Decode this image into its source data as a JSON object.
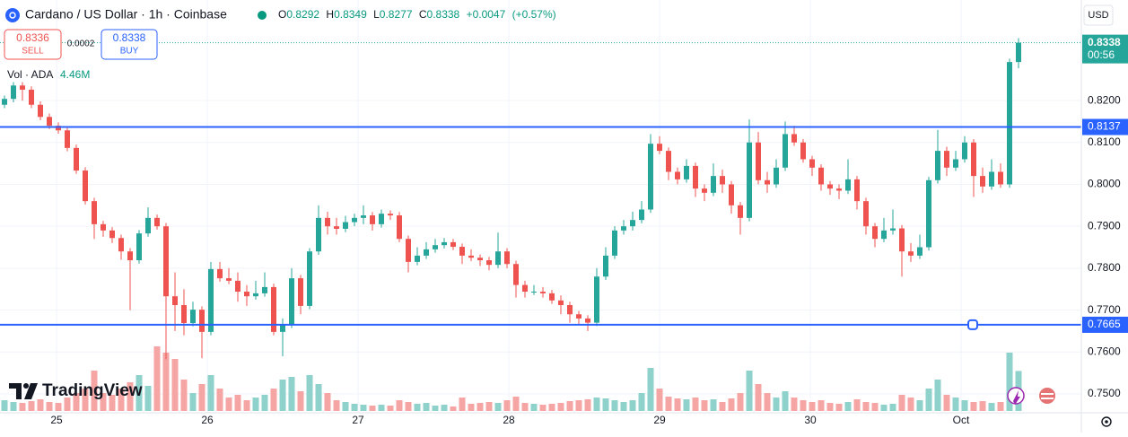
{
  "header": {
    "symbol": "Cardano / US Dollar · 1h · Coinbase",
    "o_label": "O",
    "h_label": "H",
    "l_label": "L",
    "c_label": "C",
    "change": "+0.0047",
    "change_pct": "(+0.57%)"
  },
  "trade": {
    "sell": 0.8336,
    "sell_label": "SELL",
    "spread": 0.0002,
    "buy": 0.8338,
    "buy_label": "BUY"
  },
  "volume_legend": {
    "label": "Vol · ADA",
    "value_label": "4.46M"
  },
  "currency": "USD",
  "countdown": "00:56",
  "watermark": "TradingView",
  "chart_data": {
    "type": "candlestick",
    "up_color": "#26a69a",
    "down_color": "#ef5350",
    "volume_up_color": "#8fd2cc",
    "volume_down_color": "#f5a5a3",
    "line_color": "#2962ff",
    "grid": true,
    "xlim": [
      -0.5,
      120
    ],
    "xticks": [
      {
        "value": 5.8,
        "label": "25"
      },
      {
        "value": 22.6,
        "label": "26"
      },
      {
        "value": 39.4,
        "label": "27"
      },
      {
        "value": 56.2,
        "label": "28"
      },
      {
        "value": 73,
        "label": "29"
      },
      {
        "value": 89.8,
        "label": "30"
      },
      {
        "value": 106.6,
        "label": "Oct"
      }
    ],
    "ylim": [
      0.7455,
      0.844
    ],
    "yticks": [
      {
        "value": 0.82,
        "label": "0.8200"
      },
      {
        "value": 0.81,
        "label": "0.8100"
      },
      {
        "value": 0.8,
        "label": "0.8000"
      },
      {
        "value": 0.79,
        "label": "0.7900"
      },
      {
        "value": 0.78,
        "label": "0.7800"
      },
      {
        "value": 0.77,
        "label": "0.7700"
      },
      {
        "value": 0.76,
        "label": "0.7600"
      },
      {
        "value": 0.75,
        "label": "0.7500"
      }
    ],
    "price_lines": [
      0.8137,
      0.7665
    ],
    "open": [
      0.819,
      0.8204,
      0.8236,
      0.8226,
      0.819,
      0.8161,
      0.814,
      0.8129,
      0.8087,
      0.8033,
      0.796,
      0.7905,
      0.789,
      0.7872,
      0.784,
      0.7819,
      0.7883,
      0.792,
      0.79,
      0.7733,
      0.7712,
      0.7669,
      0.7701,
      0.7648,
      0.7798,
      0.7776,
      0.777,
      0.7744,
      0.7733,
      0.774,
      0.7755,
      0.7648,
      0.7665,
      0.7776,
      0.771,
      0.784,
      0.792,
      0.79,
      0.7894,
      0.791,
      0.792,
      0.7926,
      0.7905,
      0.793,
      0.7926,
      0.787,
      0.7815,
      0.783,
      0.7845,
      0.7855,
      0.7862,
      0.7851,
      0.783,
      0.7825,
      0.7819,
      0.7808,
      0.784,
      0.781,
      0.776,
      0.7744,
      0.7744,
      0.774,
      0.7723,
      0.7712,
      0.769,
      0.768,
      0.767,
      0.778,
      0.783,
      0.789,
      0.79,
      0.7915,
      0.794,
      0.8097,
      0.808,
      0.803,
      0.8012,
      0.8044,
      0.799,
      0.798,
      0.802,
      0.8,
      0.795,
      0.792,
      0.81,
      0.801,
      0.8,
      0.804,
      0.812,
      0.81,
      0.806,
      0.804,
      0.8,
      0.799,
      0.7985,
      0.8012,
      0.796,
      0.79,
      0.787,
      0.789,
      0.7895,
      0.784,
      0.783,
      0.785,
      0.801,
      0.808,
      0.804,
      0.806,
      0.81,
      0.802,
      0.7995,
      0.803,
      0.8,
      0.8292
    ],
    "high": [
      0.8212,
      0.8244,
      0.8244,
      0.8234,
      0.8198,
      0.8169,
      0.8148,
      0.8137,
      0.8095,
      0.8041,
      0.7968,
      0.7913,
      0.7898,
      0.788,
      0.7848,
      0.7891,
      0.7945,
      0.7928,
      0.7908,
      0.779,
      0.775,
      0.772,
      0.7709,
      0.7815,
      0.7815,
      0.78,
      0.779,
      0.776,
      0.777,
      0.779,
      0.7763,
      0.768,
      0.78,
      0.7784,
      0.7848,
      0.795,
      0.7935,
      0.792,
      0.7925,
      0.793,
      0.795,
      0.7934,
      0.794,
      0.7938,
      0.7934,
      0.7878,
      0.785,
      0.7862,
      0.787,
      0.7872,
      0.787,
      0.7859,
      0.7845,
      0.7833,
      0.7827,
      0.7885,
      0.7848,
      0.7818,
      0.777,
      0.776,
      0.7755,
      0.7748,
      0.7735,
      0.772,
      0.7698,
      0.7688,
      0.78,
      0.785,
      0.79,
      0.7915,
      0.7935,
      0.796,
      0.812,
      0.8115,
      0.8088,
      0.804,
      0.806,
      0.8052,
      0.8,
      0.805,
      0.8035,
      0.8008,
      0.7958,
      0.8155,
      0.8125,
      0.803,
      0.806,
      0.815,
      0.814,
      0.8108,
      0.8068,
      0.8048,
      0.8008,
      0.8,
      0.806,
      0.802,
      0.7968,
      0.7908,
      0.792,
      0.794,
      0.7903,
      0.786,
      0.788,
      0.8018,
      0.813,
      0.809,
      0.808,
      0.8115,
      0.8108,
      0.804,
      0.806,
      0.805,
      0.83,
      0.8349
    ],
    "low": [
      0.8182,
      0.8196,
      0.82,
      0.8182,
      0.8153,
      0.8132,
      0.8121,
      0.8079,
      0.8025,
      0.7952,
      0.787,
      0.7875,
      0.786,
      0.782,
      0.77,
      0.7811,
      0.7875,
      0.7892,
      0.7583,
      0.765,
      0.764,
      0.7661,
      0.7585,
      0.764,
      0.7768,
      0.7762,
      0.772,
      0.771,
      0.7725,
      0.7732,
      0.764,
      0.759,
      0.7657,
      0.769,
      0.7702,
      0.7832,
      0.788,
      0.788,
      0.7886,
      0.79,
      0.7905,
      0.789,
      0.7897,
      0.7915,
      0.7862,
      0.779,
      0.7807,
      0.7822,
      0.7837,
      0.7847,
      0.7843,
      0.781,
      0.7817,
      0.7805,
      0.7795,
      0.78,
      0.78,
      0.773,
      0.773,
      0.7736,
      0.773,
      0.7715,
      0.769,
      0.767,
      0.7665,
      0.765,
      0.7662,
      0.7772,
      0.7822,
      0.788,
      0.789,
      0.7907,
      0.7932,
      0.8072,
      0.801,
      0.8,
      0.8004,
      0.797,
      0.796,
      0.7972,
      0.798,
      0.793,
      0.788,
      0.7912,
      0.8,
      0.798,
      0.7992,
      0.8032,
      0.8092,
      0.8052,
      0.802,
      0.7985,
      0.7975,
      0.7965,
      0.7977,
      0.794,
      0.788,
      0.785,
      0.7862,
      0.788,
      0.778,
      0.7815,
      0.7822,
      0.7842,
      0.8002,
      0.802,
      0.8032,
      0.8052,
      0.797,
      0.798,
      0.7987,
      0.7992,
      0.7992,
      0.8277
    ],
    "close": [
      0.8204,
      0.8236,
      0.8226,
      0.819,
      0.8161,
      0.814,
      0.8129,
      0.8087,
      0.8033,
      0.796,
      0.7905,
      0.789,
      0.7872,
      0.784,
      0.7819,
      0.7883,
      0.792,
      0.79,
      0.7733,
      0.7712,
      0.7669,
      0.7701,
      0.7648,
      0.7798,
      0.7776,
      0.777,
      0.7744,
      0.7733,
      0.774,
      0.7755,
      0.7648,
      0.7665,
      0.7776,
      0.771,
      0.784,
      0.792,
      0.79,
      0.7894,
      0.791,
      0.792,
      0.7926,
      0.7905,
      0.793,
      0.7926,
      0.787,
      0.7815,
      0.783,
      0.7845,
      0.7855,
      0.7862,
      0.7851,
      0.783,
      0.7825,
      0.7819,
      0.7808,
      0.784,
      0.781,
      0.776,
      0.7744,
      0.7744,
      0.774,
      0.7723,
      0.7712,
      0.769,
      0.768,
      0.767,
      0.778,
      0.783,
      0.789,
      0.79,
      0.7915,
      0.794,
      0.8097,
      0.808,
      0.803,
      0.8012,
      0.8044,
      0.799,
      0.798,
      0.802,
      0.8,
      0.795,
      0.792,
      0.81,
      0.801,
      0.8,
      0.804,
      0.812,
      0.81,
      0.806,
      0.804,
      0.8,
      0.799,
      0.7985,
      0.8012,
      0.796,
      0.79,
      0.787,
      0.789,
      0.7895,
      0.784,
      0.783,
      0.785,
      0.801,
      0.808,
      0.804,
      0.806,
      0.81,
      0.802,
      0.7995,
      0.803,
      0.8,
      0.8292,
      0.8338
    ],
    "volume": [
      1.2,
      1.0,
      0.9,
      1.1,
      1.3,
      1.0,
      0.9,
      1.5,
      2.0,
      2.5,
      4.5,
      2.0,
      1.8,
      2.5,
      3.2,
      4.0,
      2.8,
      7.2,
      6.5,
      5.8,
      3.5,
      2.0,
      3.0,
      4.0,
      2.5,
      1.5,
      1.8,
      1.2,
      1.5,
      1.8,
      2.5,
      3.5,
      3.8,
      2.2,
      4.0,
      3.0,
      2.0,
      1.2,
      1.0,
      0.8,
      0.7,
      0.6,
      0.7,
      0.6,
      1.2,
      1.0,
      0.8,
      0.9,
      0.6,
      0.7,
      0.5,
      1.5,
      0.8,
      0.9,
      1.0,
      0.9,
      1.2,
      1.6,
      0.9,
      0.8,
      0.7,
      0.8,
      0.9,
      1.1,
      1.2,
      1.3,
      1.5,
      1.4,
      1.2,
      1.0,
      1.2,
      2.0,
      4.8,
      2.5,
      1.6,
      1.4,
      1.3,
      1.5,
      1.2,
      1.3,
      1.0,
      1.4,
      2.0,
      4.5,
      3.0,
      2.0,
      1.5,
      2.2,
      1.5,
      1.2,
      1.0,
      1.2,
      0.9,
      0.8,
      1.0,
      1.3,
      1.0,
      0.9,
      0.7,
      0.8,
      1.8,
      1.5,
      1.2,
      2.5,
      3.5,
      1.8,
      1.5,
      1.2,
      1.0,
      1.1,
      0.9,
      1.0,
      6.5,
      4.46
    ]
  }
}
